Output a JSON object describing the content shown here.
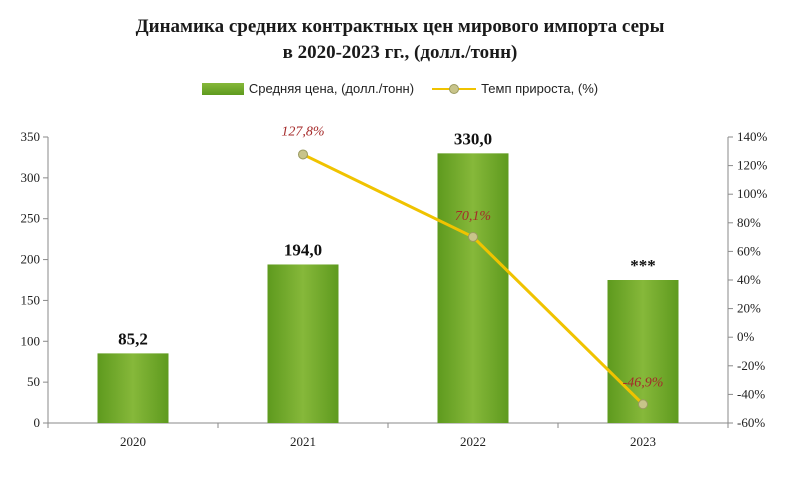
{
  "chart_data": {
    "type": "bar",
    "title_line1": "Динамика средних контрактных цен мирового импорта серы",
    "title_line2": "в 2020-2023 гг., (долл./тонн)",
    "categories": [
      "2020",
      "2021",
      "2022",
      "2023"
    ],
    "series": [
      {
        "name": "Средняя цена, (долл./тонн)",
        "type": "bar",
        "axis": "left",
        "values": [
          85.2,
          194.0,
          330.0,
          175.0
        ],
        "labels": [
          "85,2",
          "194,0",
          "330,0",
          "***"
        ],
        "color": "#6aa528"
      },
      {
        "name": "Темп прироста, (%)",
        "type": "line",
        "axis": "right",
        "values": [
          null,
          127.8,
          70.1,
          -46.9
        ],
        "labels": [
          "",
          "127,8%",
          "70,1%",
          "-46,9%"
        ],
        "color": "#f0c300",
        "marker_color": "#c8c48a"
      }
    ],
    "y_left": {
      "ylim": [
        0,
        350
      ],
      "ticks": [
        0,
        50,
        100,
        150,
        200,
        250,
        300,
        350
      ],
      "tick_labels": [
        "0",
        "50",
        "100",
        "150",
        "200",
        "250",
        "300",
        "350"
      ]
    },
    "y_right": {
      "ylim": [
        -60,
        140
      ],
      "ticks": [
        -60,
        -40,
        -20,
        0,
        20,
        40,
        60,
        80,
        100,
        120,
        140
      ],
      "tick_labels": [
        "-60%",
        "-40%",
        "-20%",
        "0%",
        "20%",
        "40%",
        "60%",
        "80%",
        "100%",
        "120%",
        "140%"
      ]
    },
    "grid": false,
    "legend_position": "top",
    "label_color": "#a52a2a"
  }
}
